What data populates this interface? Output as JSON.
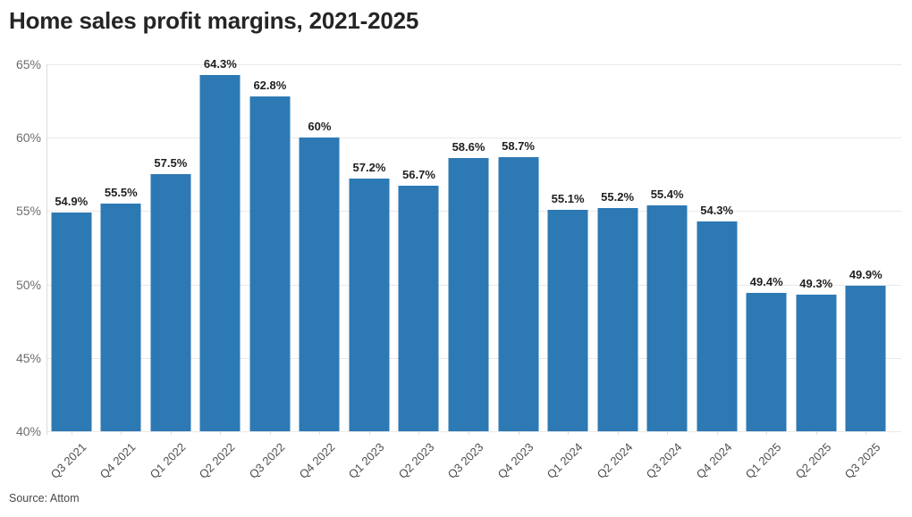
{
  "title": "Home sales profit margins, 2021-2025",
  "source": "Source: Attom",
  "colors": {
    "bar": "#2d79b4",
    "gridline": "#e9e9e9",
    "axis": "#dcdcdc",
    "title_text": "#252525",
    "value_label_text": "#1f1f1f",
    "y_label_text": "#6d6d6d",
    "x_label_text": "#4f4f4f"
  },
  "chart_data": {
    "type": "bar",
    "title": "Home sales profit margins, 2021-2025",
    "source": "Source: Attom",
    "categories": [
      "Q3 2021",
      "Q4 2021",
      "Q1 2022",
      "Q2 2022",
      "Q3 2022",
      "Q4 2022",
      "Q1 2023",
      "Q2 2023",
      "Q3 2023",
      "Q4 2023",
      "Q1 2024",
      "Q2 2024",
      "Q3 2024",
      "Q4 2024",
      "Q1 2025",
      "Q2 2025",
      "Q3 2025"
    ],
    "values": [
      54.9,
      55.5,
      57.5,
      64.3,
      62.8,
      60,
      57.2,
      56.7,
      58.6,
      58.7,
      55.1,
      55.2,
      55.4,
      54.3,
      49.4,
      49.3,
      49.9
    ],
    "value_labels": [
      "54.9%",
      "55.5%",
      "57.5%",
      "64.3%",
      "62.8%",
      "60%",
      "57.2%",
      "56.7%",
      "58.6%",
      "58.7%",
      "55.1%",
      "55.2%",
      "55.4%",
      "54.3%",
      "49.4%",
      "49.3%",
      "49.9%"
    ],
    "xlabel": "",
    "ylabel": "",
    "ylim": [
      40,
      65
    ],
    "yticks": [
      {
        "label": "65%",
        "value": 65
      },
      {
        "label": "60%",
        "value": 60
      },
      {
        "label": "55%",
        "value": 55
      },
      {
        "label": "50%",
        "value": 50
      },
      {
        "label": "45%",
        "value": 45
      },
      {
        "label": "40%",
        "value": 40
      }
    ],
    "grid": true,
    "legend": false
  }
}
